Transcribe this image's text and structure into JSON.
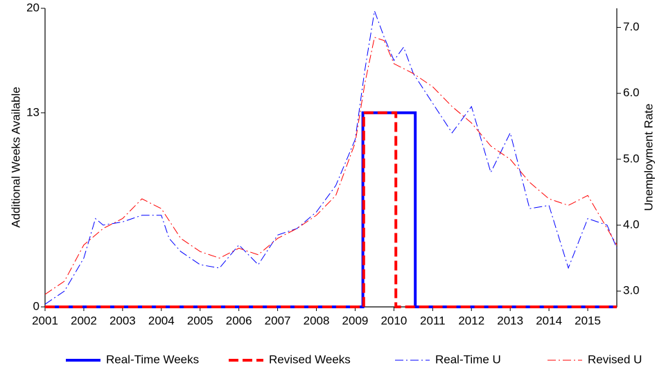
{
  "chart_data": {
    "type": "line",
    "ylabel": "Additional Weeks Available",
    "y2label": "Unemployment Rate",
    "xlim": [
      2001,
      2015.75
    ],
    "xticks": [
      2001,
      2002,
      2003,
      2004,
      2005,
      2006,
      2007,
      2008,
      2009,
      2010,
      2011,
      2012,
      2013,
      2014,
      2015
    ],
    "ylim": [
      0,
      20
    ],
    "yticks": [
      0,
      13,
      20
    ],
    "y2lim": [
      2.76,
      7.29
    ],
    "y2ticks": [
      {
        "value": 3,
        "label": "3.0"
      },
      {
        "value": 4,
        "label": "4.0"
      },
      {
        "value": 5,
        "label": "5.0"
      },
      {
        "value": 6,
        "label": "6.0"
      },
      {
        "value": 7,
        "label": "7.0"
      }
    ],
    "series": [
      {
        "name": "Real-Time Weeks",
        "color": "#0000ff",
        "line_style": "solid",
        "linewidth": 4,
        "x": [
          2001,
          2009.2,
          2009.2,
          2010.55,
          2010.55,
          2015.75
        ],
        "values": [
          0,
          0,
          13,
          13,
          0,
          0
        ]
      },
      {
        "name": "Revised Weeks",
        "color": "#ff0000",
        "line_style": "dashed",
        "linewidth": 4,
        "x": [
          2001,
          2009.22,
          2009.22,
          2010.05,
          2010.05,
          2015.75
        ],
        "values": [
          0,
          0,
          13,
          13,
          0,
          0
        ]
      },
      {
        "name": "Real-Time U",
        "color": "#0000ff",
        "line_style": "dashdot",
        "linewidth": 1,
        "axis": "y2",
        "x": [
          2001,
          2001.5,
          2002,
          2002.3,
          2002.5,
          2003,
          2003.5,
          2004,
          2004.2,
          2004.5,
          2005,
          2005.5,
          2006,
          2006.5,
          2007,
          2007.5,
          2008,
          2008.5,
          2009,
          2009.25,
          2009.5,
          2009.75,
          2010,
          2010.25,
          2010.5,
          2011,
          2011.5,
          2012,
          2012.5,
          2013,
          2013.5,
          2014,
          2014.5,
          2015,
          2015.5,
          2015.75
        ],
        "values": [
          2.8,
          3.0,
          3.5,
          4.1,
          4.0,
          4.05,
          4.15,
          4.15,
          3.8,
          3.6,
          3.4,
          3.35,
          3.7,
          3.4,
          3.85,
          3.95,
          4.2,
          4.6,
          5.3,
          6.35,
          7.25,
          6.85,
          6.5,
          6.7,
          6.3,
          5.85,
          5.4,
          5.8,
          4.8,
          5.4,
          4.25,
          4.3,
          3.35,
          4.1,
          4.0,
          3.65
        ]
      },
      {
        "name": "Revised U",
        "color": "#ff0000",
        "line_style": "dashdot",
        "linewidth": 1,
        "axis": "y2",
        "x": [
          2001,
          2001.5,
          2002,
          2002.5,
          2003,
          2003.5,
          2004,
          2004.5,
          2005,
          2005.5,
          2006,
          2006.5,
          2007,
          2007.5,
          2008,
          2008.5,
          2009,
          2009.25,
          2009.5,
          2009.75,
          2010,
          2010.5,
          2011,
          2011.5,
          2012,
          2012.5,
          2013,
          2013.5,
          2014,
          2014.5,
          2015,
          2015.5,
          2015.75
        ],
        "values": [
          2.95,
          3.15,
          3.7,
          3.95,
          4.1,
          4.4,
          4.25,
          3.8,
          3.6,
          3.5,
          3.65,
          3.55,
          3.8,
          3.95,
          4.15,
          4.45,
          5.25,
          6.15,
          6.85,
          6.8,
          6.45,
          6.3,
          6.1,
          5.8,
          5.55,
          5.2,
          5.0,
          4.65,
          4.4,
          4.3,
          4.45,
          3.95,
          3.7
        ]
      }
    ]
  }
}
